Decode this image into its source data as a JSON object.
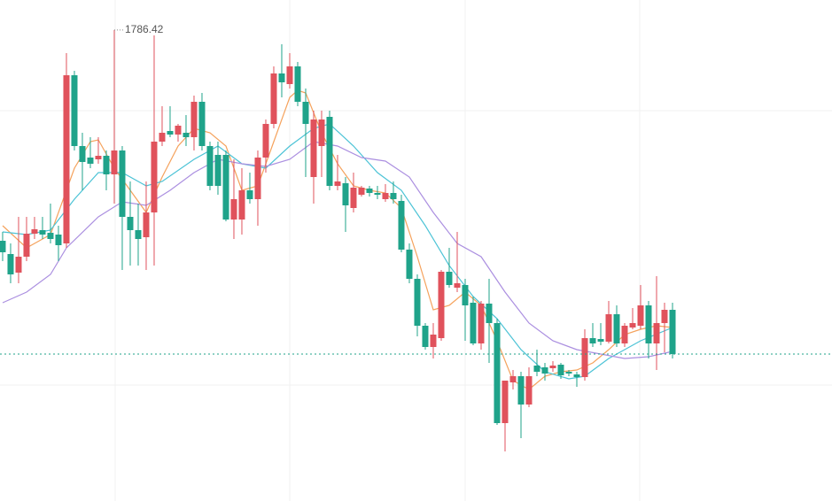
{
  "chart_data": {
    "type": "candlestick",
    "open": [
      1738.8,
      1735.8,
      1731.6,
      1735.2,
      1740.4,
      1741.2,
      1740.6,
      1740.2,
      1738.2,
      1776.2,
      1760.2,
      1757.6,
      1757.2,
      1758.0,
      1753.8,
      1759.2,
      1744.2,
      1741.2,
      1739.6,
      1745.2,
      1761.2,
      1763.6,
      1762.8,
      1763.2,
      1762.2,
      1770.2,
      1760.2,
      1758.2,
      1758.2,
      1743.6,
      1743.6,
      1750.2,
      1748.2,
      1757.6,
      1765.2,
      1776.6,
      1774.2,
      1778.2,
      1770.2,
      1753.2,
      1760.2,
      1766.8,
      1751.2,
      1751.8,
      1746.2,
      1749.2,
      1750.6,
      1749.6,
      1748.2,
      1749.6,
      1747.8,
      1736.8,
      1730.2,
      1719.6,
      1714.8,
      1716.8,
      1731.8,
      1728.2,
      1728.8,
      1724.8,
      1715.6,
      1724.6,
      1720.2,
      1697.6,
      1706.8,
      1708.2,
      1701.8,
      1710.6,
      1710.2,
      1710.0,
      1710.8,
      1709.2,
      1708.6,
      1708.0,
      1716.8,
      1716.6,
      1716.0,
      1722.2,
      1715.6,
      1719.2,
      1719.6,
      1724.2,
      1715.6,
      1720.2,
      1723.2
    ],
    "high": [
      1740.8,
      1738.2,
      1744.2,
      1744.2,
      1744.2,
      1744.2,
      1747.2,
      1742.2,
      1781.2,
      1777.2,
      1763.2,
      1762.2,
      1762.2,
      1759.2,
      1786.42,
      1760.2,
      1752.2,
      1747.2,
      1752.2,
      1785.2,
      1769.2,
      1769.2,
      1765.2,
      1767.2,
      1771.6,
      1772.2,
      1761.2,
      1761.2,
      1759.2,
      1757.2,
      1755.2,
      1754.2,
      1759.2,
      1766.2,
      1778.2,
      1783.2,
      1781.2,
      1779.2,
      1773.2,
      1768.2,
      1768.2,
      1768.2,
      1758.2,
      1753.2,
      1754.2,
      1751.2,
      1751.2,
      1751.2,
      1751.6,
      1752.2,
      1749.2,
      1738.2,
      1731.2,
      1720.2,
      1720.2,
      1732.2,
      1737.2,
      1740.8,
      1730.2,
      1726.2,
      1725.2,
      1730.2,
      1721.2,
      1707.2,
      1709.6,
      1709.2,
      1710.2,
      1714.2,
      1711.2,
      1711.6,
      1711.2,
      1709.6,
      1709.2,
      1718.8,
      1720.2,
      1720.2,
      1725.2,
      1724.2,
      1720.2,
      1723.6,
      1728.8,
      1725.2,
      1730.8,
      1724.8,
      1724.8
    ],
    "low": [
      1734.2,
      1729.2,
      1729.2,
      1734.2,
      1739.2,
      1739.2,
      1738.2,
      1734.2,
      1737.2,
      1759.2,
      1750.2,
      1755.2,
      1756.2,
      1750.2,
      1747.2,
      1732.2,
      1733.2,
      1733.2,
      1732.2,
      1733.2,
      1760.2,
      1762.2,
      1761.2,
      1760.2,
      1759.2,
      1759.2,
      1750.2,
      1749.2,
      1743.2,
      1739.2,
      1740.2,
      1747.2,
      1742.2,
      1754.2,
      1764.2,
      1771.2,
      1773.2,
      1769.2,
      1753.2,
      1747.2,
      1753.2,
      1750.2,
      1750.2,
      1740.8,
      1745.2,
      1748.8,
      1748.8,
      1748.2,
      1747.6,
      1747.2,
      1736.2,
      1729.2,
      1717.2,
      1714.2,
      1712.2,
      1716.2,
      1728.2,
      1727.2,
      1716.2,
      1715.2,
      1714.2,
      1711.2,
      1697.2,
      1691.2,
      1705.2,
      1694.2,
      1701.2,
      1708.2,
      1707.2,
      1709.2,
      1707.6,
      1708.2,
      1705.8,
      1707.2,
      1714.8,
      1715.2,
      1715.6,
      1714.8,
      1714.8,
      1718.8,
      1718.8,
      1712.2,
      1709.6,
      1713.6,
      1712.2
    ],
    "close": [
      1736.2,
      1731.2,
      1735.2,
      1740.4,
      1741.4,
      1740.2,
      1739.2,
      1737.8,
      1776.2,
      1760.2,
      1756.6,
      1756.2,
      1758.0,
      1753.8,
      1759.2,
      1744.2,
      1741.2,
      1739.2,
      1745.2,
      1761.2,
      1763.2,
      1762.8,
      1764.8,
      1762.2,
      1770.2,
      1760.2,
      1751.2,
      1751.2,
      1743.6,
      1748.2,
      1750.2,
      1748.2,
      1757.6,
      1765.2,
      1776.6,
      1774.6,
      1778.2,
      1770.2,
      1765.2,
      1766.2,
      1766.2,
      1751.2,
      1752.2,
      1746.8,
      1750.8,
      1750.8,
      1749.6,
      1749.2,
      1749.6,
      1748.2,
      1736.8,
      1730.2,
      1719.6,
      1714.8,
      1717.6,
      1731.8,
      1728.8,
      1729.2,
      1724.2,
      1715.6,
      1724.6,
      1720.2,
      1697.6,
      1707.2,
      1708.2,
      1701.8,
      1708.2,
      1709.2,
      1708.8,
      1710.6,
      1708.4,
      1708.8,
      1708.0,
      1716.8,
      1715.6,
      1716.0,
      1722.2,
      1715.6,
      1719.6,
      1720.2,
      1724.2,
      1715.6,
      1720.2,
      1723.2,
      1713.2
    ],
    "up_color": "#e0525c",
    "down_color": "#1fa38a",
    "series": [
      {
        "color": "#f5a25c",
        "x": [
          0,
          3,
          6,
          9,
          11,
          12,
          14,
          16,
          18,
          20,
          22,
          24,
          26,
          28,
          30,
          32,
          34,
          36,
          37,
          38,
          40,
          42,
          44,
          46,
          48,
          50,
          52,
          54,
          56,
          58,
          60,
          62,
          64,
          66,
          68,
          70,
          72,
          74,
          76,
          78,
          80,
          82,
          84
        ],
        "values": [
          1742.2,
          1737.2,
          1740.2,
          1755.2,
          1761.2,
          1761.6,
          1755.2,
          1750.2,
          1745.2,
          1753.2,
          1760.2,
          1764.2,
          1763.2,
          1760.2,
          1750.2,
          1751.2,
          1761.2,
          1771.2,
          1772.8,
          1772.2,
          1763.2,
          1756.2,
          1751.2,
          1750.2,
          1749.6,
          1746.2,
          1735.2,
          1723.2,
          1724.2,
          1727.2,
          1724.2,
          1716.2,
          1707.2,
          1705.2,
          1708.2,
          1709.2,
          1709.6,
          1711.2,
          1714.2,
          1717.6,
          1718.8,
          1719.6,
          1719.2
        ]
      },
      {
        "color": "#4cc3d6",
        "x": [
          0,
          3,
          6,
          9,
          12,
          15,
          18,
          20,
          24,
          27,
          30,
          33,
          36,
          39,
          41,
          44,
          47,
          50,
          53,
          56,
          59,
          62,
          65,
          68,
          71,
          73,
          76,
          80,
          84
        ],
        "values": [
          1740.8,
          1740.2,
          1741.2,
          1748.2,
          1754.2,
          1754.2,
          1751.2,
          1752.2,
          1757.2,
          1760.2,
          1756.2,
          1755.2,
          1760.2,
          1764.2,
          1765.2,
          1760.2,
          1754.2,
          1750.2,
          1742.2,
          1733.2,
          1726.2,
          1721.2,
          1714.2,
          1709.2,
          1707.6,
          1708.2,
          1712.2,
          1716.2,
          1719.2
        ]
      },
      {
        "color": "#ab8fe0",
        "x": [
          0,
          3,
          6,
          8,
          12,
          15,
          18,
          21,
          24,
          27,
          30,
          33,
          36,
          39,
          42,
          45,
          48,
          51,
          54,
          57,
          60,
          63,
          66,
          69,
          72,
          75,
          78,
          81,
          84
        ],
        "values": [
          1724.8,
          1727.2,
          1731.2,
          1737.2,
          1744.2,
          1747.6,
          1746.8,
          1750.2,
          1754.2,
          1757.2,
          1756.2,
          1755.6,
          1757.2,
          1761.2,
          1760.2,
          1757.6,
          1756.8,
          1753.2,
          1745.2,
          1738.2,
          1735.2,
          1727.2,
          1720.2,
          1716.2,
          1714.2,
          1713.2,
          1712.2,
          1712.6,
          1713.8
        ]
      }
    ],
    "xlim": [
      -0.33,
      104
    ],
    "ylim": [
      1680,
      1793.2
    ],
    "high_label_index": 14,
    "last_price_line": true
  }
}
